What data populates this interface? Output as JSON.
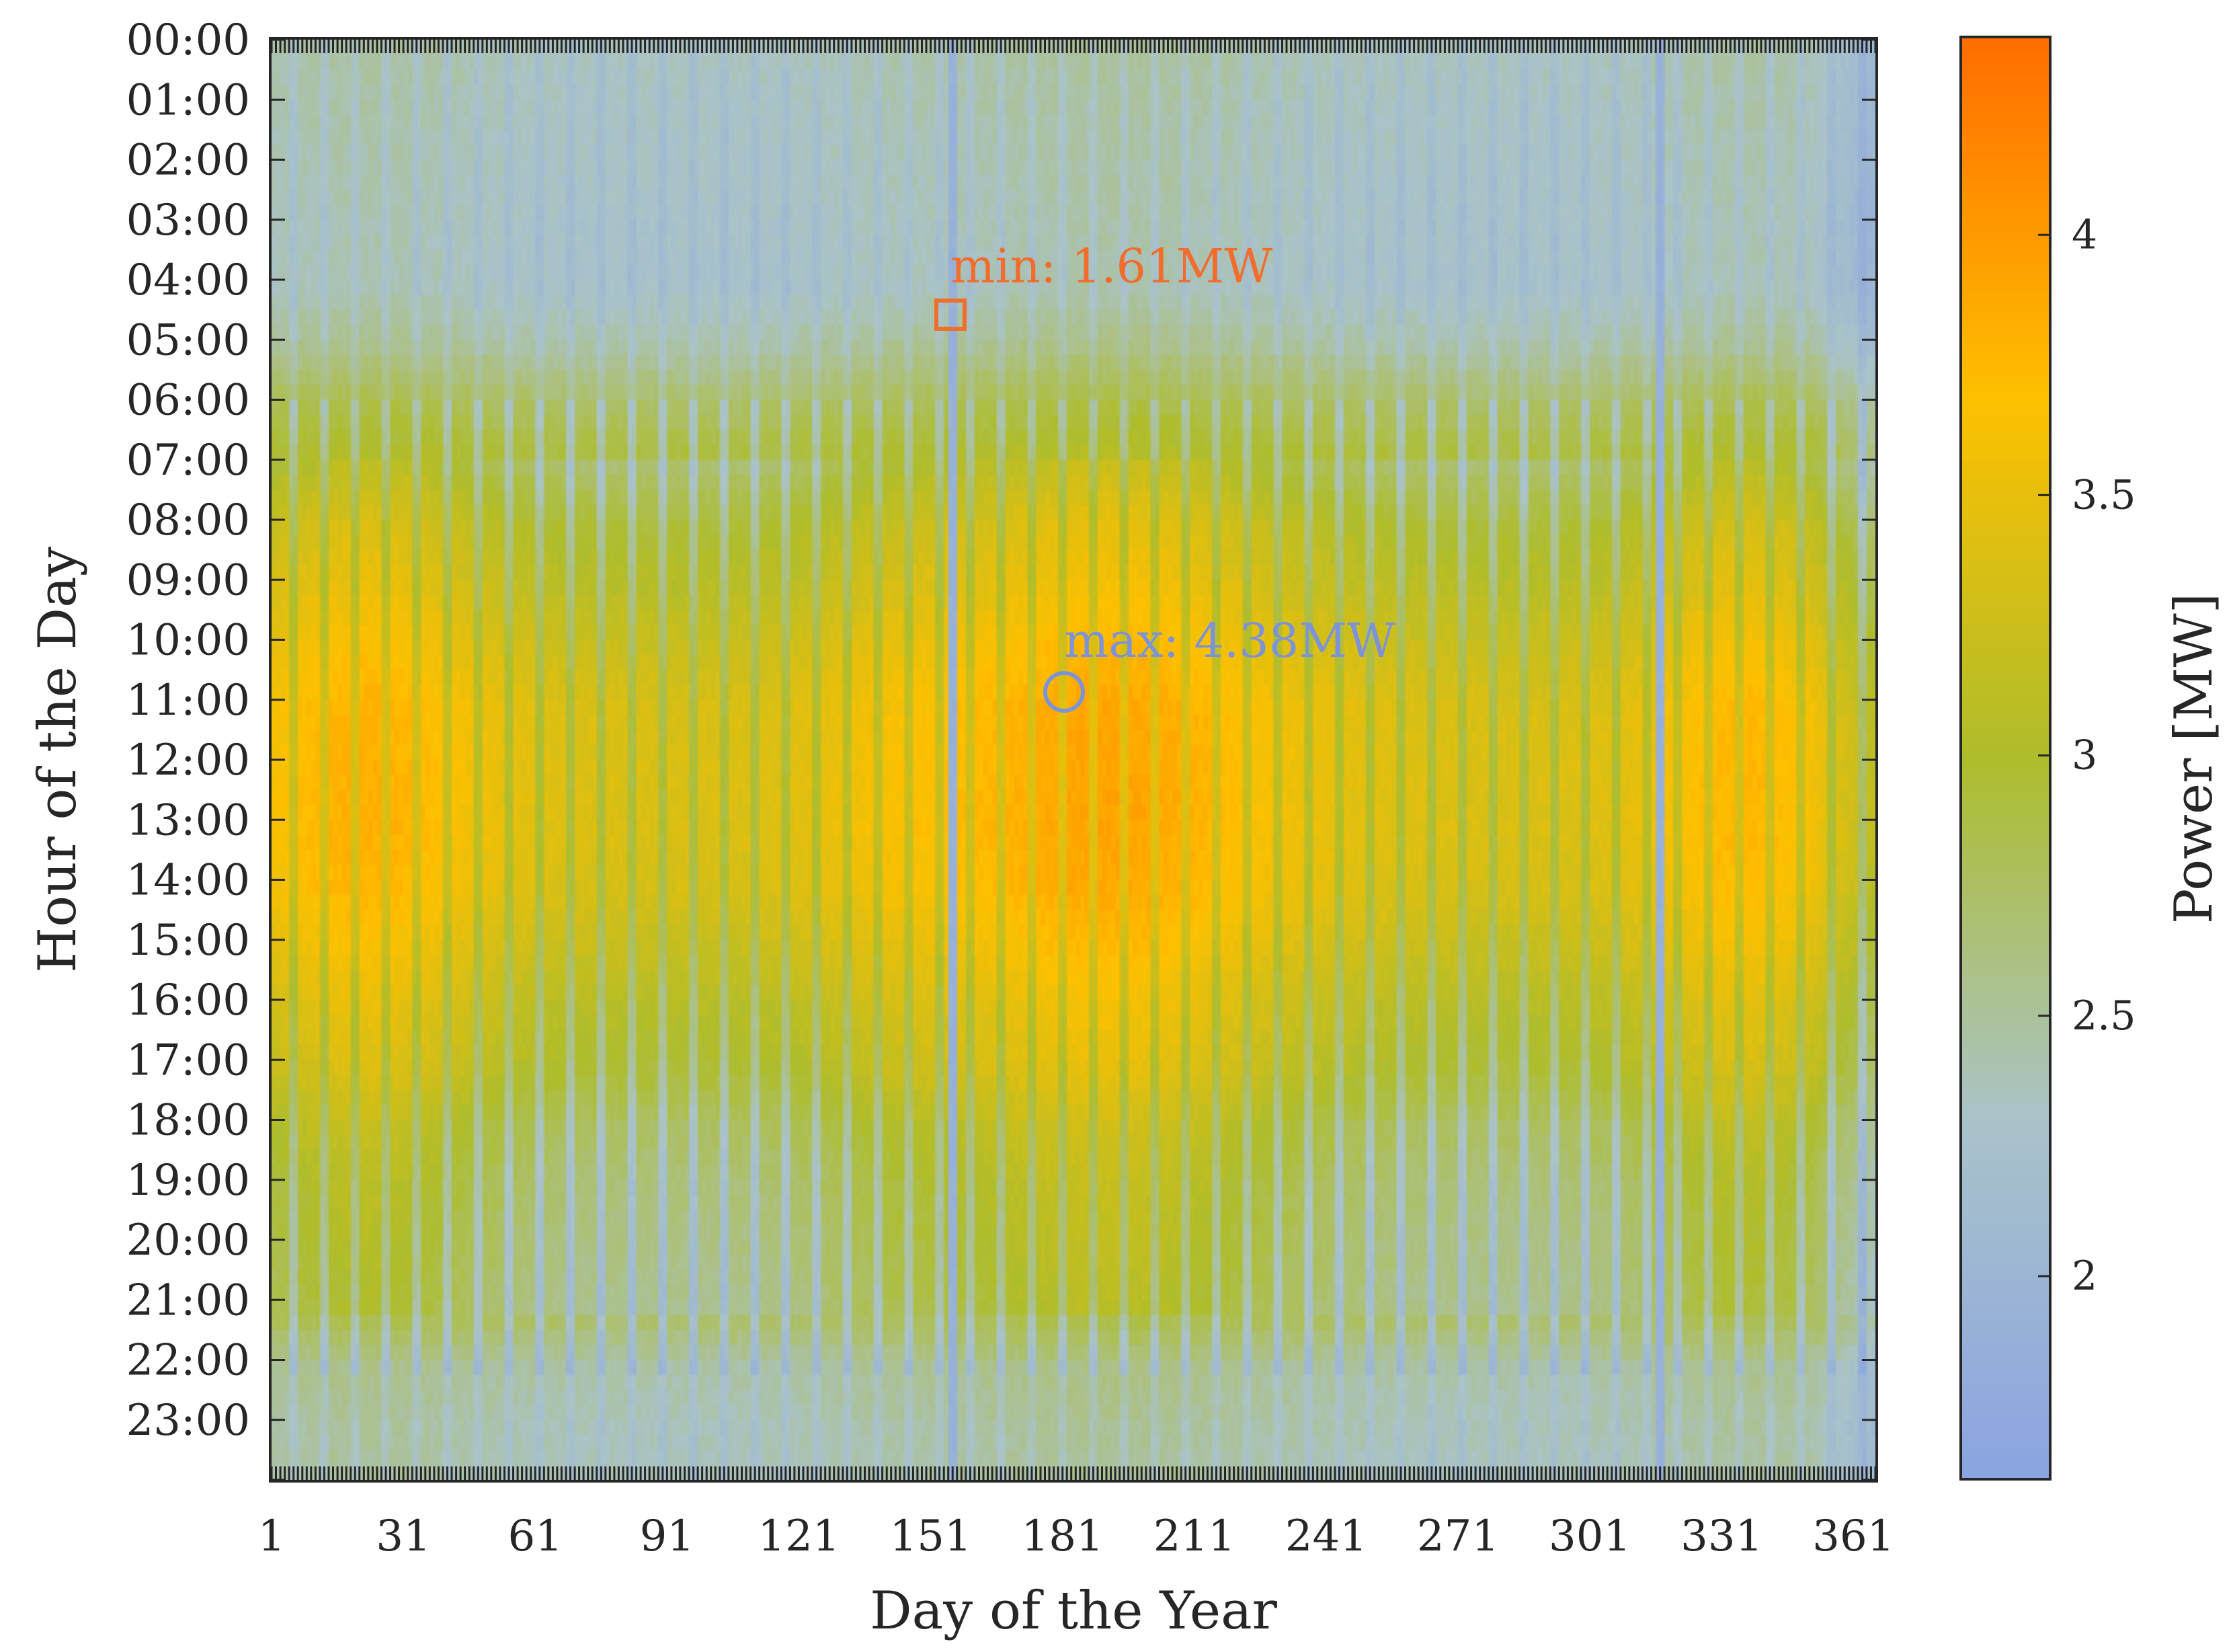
{
  "chart_data": {
    "type": "heatmap",
    "xlabel": "Day of the Year",
    "ylabel": "Hour of the Day",
    "colorbar_label": "Power [MW]",
    "x_ticks": [
      "1",
      "31",
      "61",
      "91",
      "121",
      "151",
      "181",
      "211",
      "241",
      "271",
      "301",
      "331",
      "361"
    ],
    "y_ticks": [
      "00:00",
      "01:00",
      "02:00",
      "03:00",
      "04:00",
      "05:00",
      "06:00",
      "07:00",
      "08:00",
      "09:00",
      "10:00",
      "11:00",
      "12:00",
      "13:00",
      "14:00",
      "15:00",
      "16:00",
      "17:00",
      "18:00",
      "19:00",
      "20:00",
      "21:00",
      "22:00",
      "23:00"
    ],
    "colorbar_ticks": [
      "2",
      "2.5",
      "3",
      "3.5",
      "4"
    ],
    "colorbar_tick_values": [
      2,
      2.5,
      3,
      3.5,
      4
    ],
    "colorbar_range": [
      1.61,
      4.38
    ],
    "colormap": [
      "#8aa4e2",
      "#aac3c9",
      "#aebd2c",
      "#fec000",
      "#ff6d00"
    ],
    "x_range": [
      1,
      366
    ],
    "y_range": [
      0,
      24
    ],
    "hourly_profile_mw": [
      2.45,
      2.42,
      2.4,
      2.38,
      2.37,
      2.55,
      2.85,
      3.05,
      3.3,
      3.42,
      3.58,
      3.7,
      3.72,
      3.72,
      3.68,
      3.55,
      3.4,
      3.3,
      3.1,
      3.0,
      2.95,
      2.9,
      2.55,
      2.48
    ],
    "low_load_days": [
      155,
      156,
      316,
      317
    ],
    "annotations": {
      "min": {
        "label": "min: 1.61MW",
        "value_mw": 1.61,
        "day": 154,
        "hour": 4.5,
        "color": "#f06d2c"
      },
      "max": {
        "label": "max: 4.38MW",
        "value_mw": 4.38,
        "day": 180,
        "hour": 10.8,
        "color": "#7c93d8"
      }
    }
  }
}
